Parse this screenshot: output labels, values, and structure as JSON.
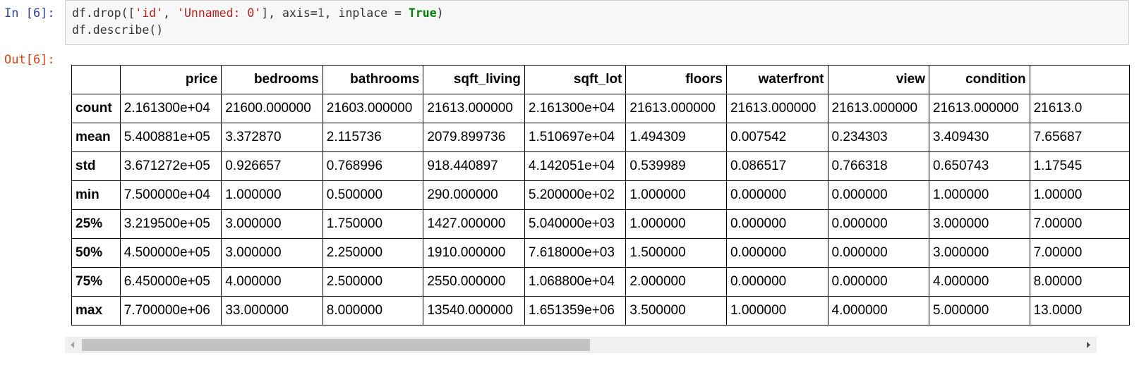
{
  "cell": {
    "in_prompt": "In [6]:",
    "out_prompt": "Out[6]:",
    "code": {
      "line1": {
        "p1": "df.drop([",
        "s1": "'id'",
        "p2": ", ",
        "s2": "'Unnamed: 0'",
        "p3": "], axis=",
        "n1": "1",
        "p4": ", inplace = ",
        "k1": "True",
        "p5": ")"
      },
      "line2": "df.describe()"
    }
  },
  "table": {
    "columns": [
      "",
      "price",
      "bedrooms",
      "bathrooms",
      "sqft_living",
      "sqft_lot",
      "floors",
      "waterfront",
      "view",
      "condition",
      ""
    ],
    "rows": [
      {
        "label": "count",
        "cells": [
          "2.161300e+04",
          "21600.000000",
          "21603.000000",
          "21613.000000",
          "2.161300e+04",
          "21613.000000",
          "21613.000000",
          "21613.000000",
          "21613.000000",
          "21613.0"
        ]
      },
      {
        "label": "mean",
        "cells": [
          "5.400881e+05",
          "3.372870",
          "2.115736",
          "2079.899736",
          "1.510697e+04",
          "1.494309",
          "0.007542",
          "0.234303",
          "3.409430",
          "7.65687"
        ]
      },
      {
        "label": "std",
        "cells": [
          "3.671272e+05",
          "0.926657",
          "0.768996",
          "918.440897",
          "4.142051e+04",
          "0.539989",
          "0.086517",
          "0.766318",
          "0.650743",
          "1.17545"
        ]
      },
      {
        "label": "min",
        "cells": [
          "7.500000e+04",
          "1.000000",
          "0.500000",
          "290.000000",
          "5.200000e+02",
          "1.000000",
          "0.000000",
          "0.000000",
          "1.000000",
          "1.00000"
        ]
      },
      {
        "label": "25%",
        "cells": [
          "3.219500e+05",
          "3.000000",
          "1.750000",
          "1427.000000",
          "5.040000e+03",
          "1.000000",
          "0.000000",
          "0.000000",
          "3.000000",
          "7.00000"
        ]
      },
      {
        "label": "50%",
        "cells": [
          "4.500000e+05",
          "3.000000",
          "2.250000",
          "1910.000000",
          "7.618000e+03",
          "1.500000",
          "0.000000",
          "0.000000",
          "3.000000",
          "7.00000"
        ]
      },
      {
        "label": "75%",
        "cells": [
          "6.450000e+05",
          "4.000000",
          "2.500000",
          "2550.000000",
          "1.068800e+04",
          "2.000000",
          "0.000000",
          "0.000000",
          "4.000000",
          "8.00000"
        ]
      },
      {
        "label": "max",
        "cells": [
          "7.700000e+06",
          "33.000000",
          "8.000000",
          "13540.000000",
          "1.651359e+06",
          "3.500000",
          "1.000000",
          "4.000000",
          "5.000000",
          "13.0000"
        ]
      }
    ]
  },
  "scrollbar": {
    "left_icon": "triangle-left-icon",
    "right_icon": "triangle-right-icon",
    "thumb_position_fraction": 0.0,
    "thumb_size_fraction": 0.49
  }
}
